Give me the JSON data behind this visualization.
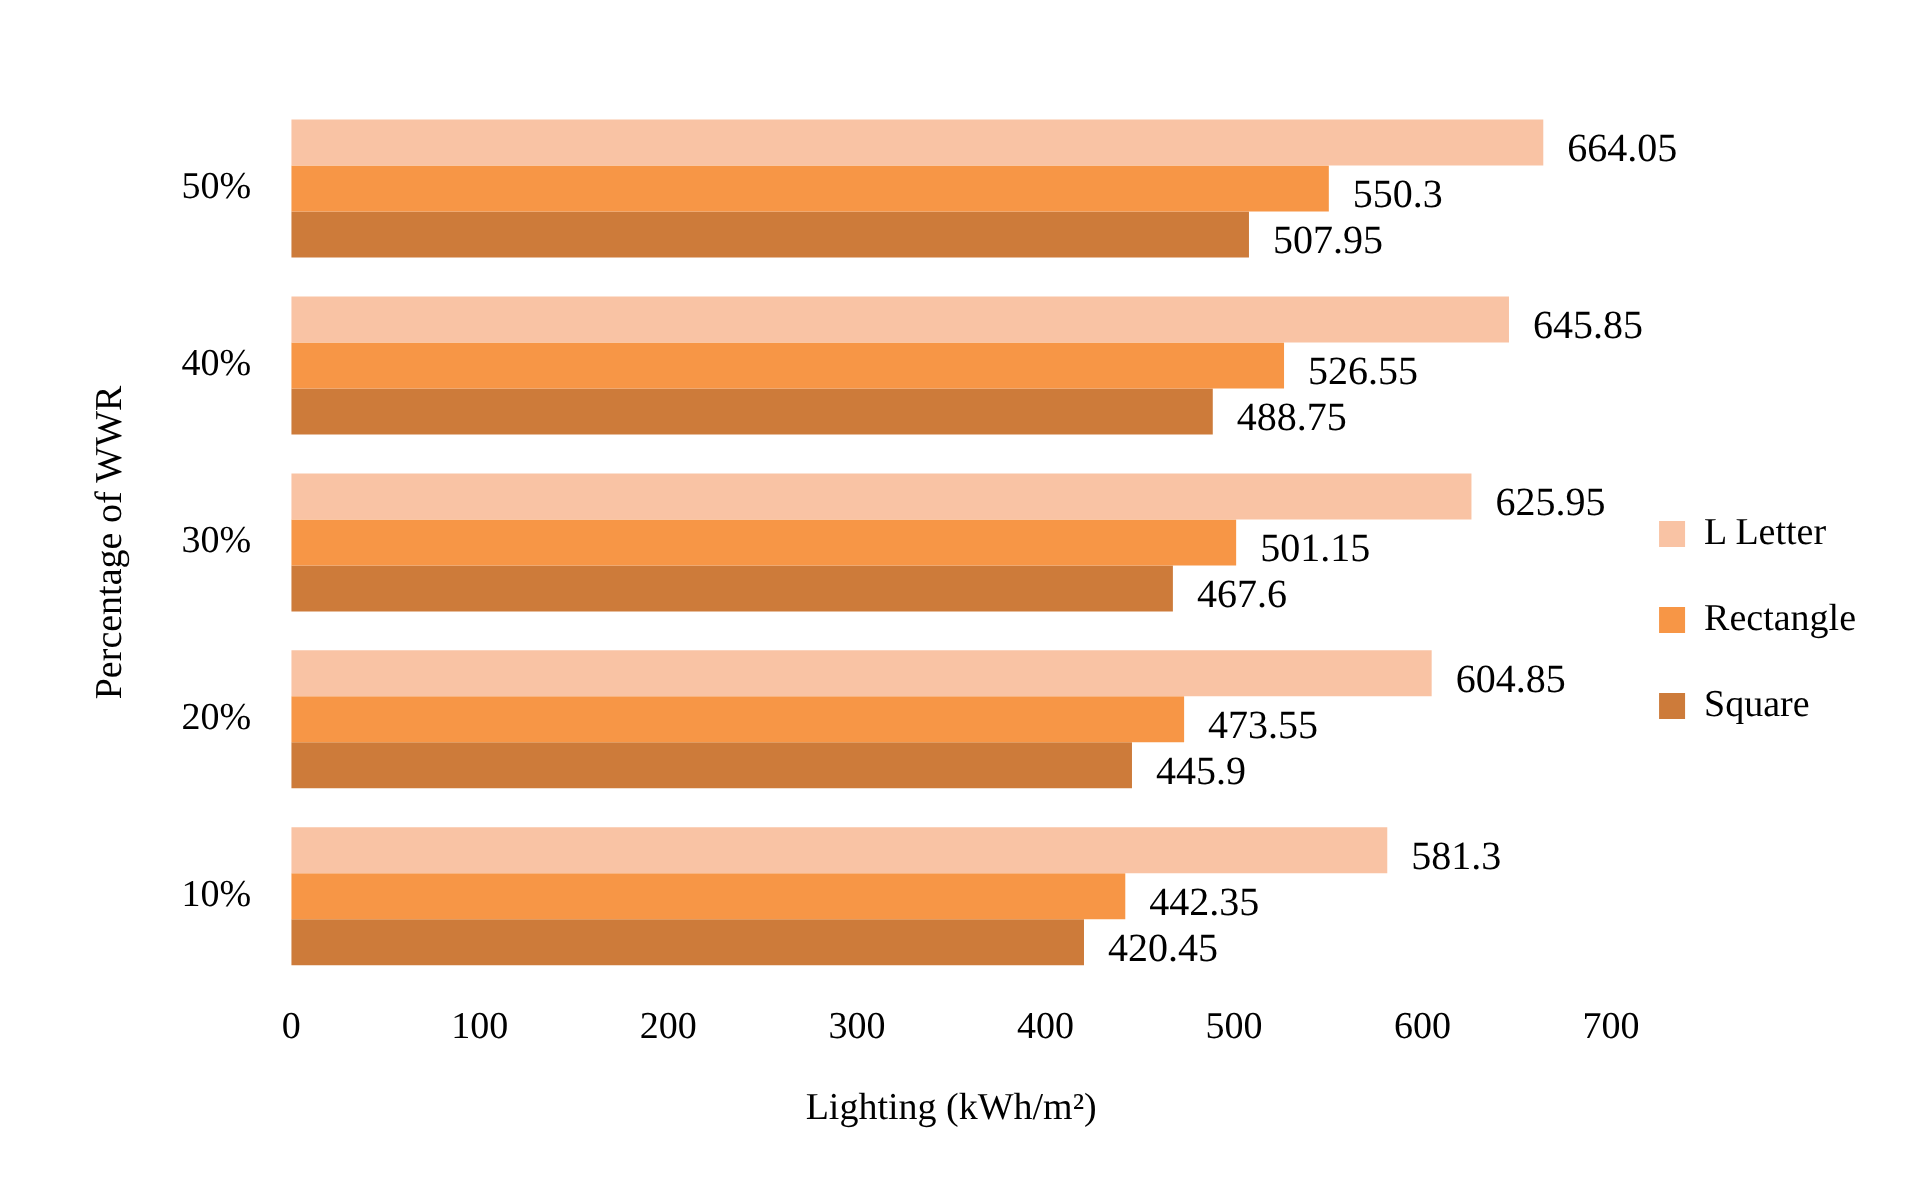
{
  "chart_data": {
    "type": "bar",
    "orientation": "horizontal",
    "xlabel": "Lighting (kWh/m²)",
    "ylabel": "Percentage of WWR",
    "categories": [
      "50%",
      "40%",
      "30%",
      "20%",
      "10%"
    ],
    "series": [
      {
        "name": "L Letter",
        "color": "#f9c3a4",
        "values": [
          664.05,
          645.85,
          625.95,
          604.85,
          581.3
        ]
      },
      {
        "name": "Rectangle",
        "color": "#f79646",
        "values": [
          550.3,
          526.55,
          501.15,
          473.55,
          442.35
        ]
      },
      {
        "name": "Square",
        "color": "#cd7b3a",
        "values": [
          507.95,
          488.75,
          467.6,
          445.9,
          420.45
        ]
      }
    ],
    "xlim": [
      0,
      700
    ],
    "xticks": [
      0,
      100,
      200,
      300,
      400,
      500,
      600,
      700
    ],
    "grid": false,
    "legend": "right",
    "data_labels": true
  }
}
